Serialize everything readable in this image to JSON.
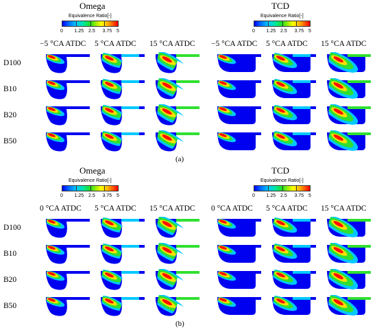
{
  "panels": [
    {
      "caption": "(a)",
      "groups": [
        {
          "title": "Omega",
          "legend_title": "Equivalence  Ratio[-]",
          "legend_ticks": [
            "0",
            "1.25",
            "2.5",
            "3.75",
            "5"
          ],
          "columns": [
            "−5 °CA ATDC",
            "5 °CA ATDC",
            "15 °CA ATDC"
          ]
        },
        {
          "title": "TCD",
          "legend_title": "Equivalence  Ratio[-]",
          "legend_ticks": [
            "0",
            "1.25",
            "2.5",
            "3.75",
            "5"
          ],
          "columns": [
            "−5 °CA ATDC",
            "5 °CA ATDC",
            "15 °CA ATDC"
          ]
        }
      ],
      "rows": [
        "D100",
        "B10",
        "B20",
        "B50"
      ]
    },
    {
      "caption": "(b)",
      "groups": [
        {
          "title": "Omega",
          "legend_title": "Equivalence  Ratio[-]",
          "legend_ticks": [
            "0",
            "1.25",
            "2.5",
            "3.75",
            "5"
          ],
          "columns": [
            "0 °CA ATDC",
            "5 °CA ATDC",
            "15 °CA ATDC"
          ]
        },
        {
          "title": "TCD",
          "legend_title": "Equivalence  Ratio[-]",
          "legend_ticks": [
            "0",
            "1.25",
            "2.5",
            "3.75",
            "5"
          ],
          "columns": [
            "0 °CA ATDC",
            "5 °CA ATDC",
            "15 °CA ATDC"
          ]
        }
      ],
      "rows": [
        "D100",
        "B10",
        "B20",
        "B50"
      ]
    }
  ],
  "colors": {
    "blue": "#0000f0",
    "cyan": "#00c8ff",
    "green": "#30e030",
    "yellow": "#ffe000",
    "red": "#ff1000"
  }
}
